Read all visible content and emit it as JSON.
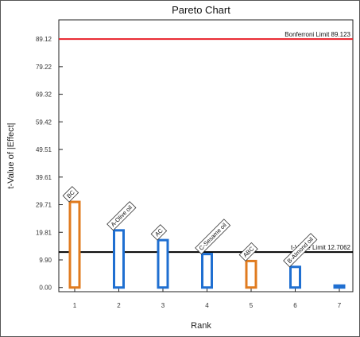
{
  "chart_data": {
    "type": "bar",
    "title": "Pareto Chart",
    "xlabel": "Rank",
    "ylabel": "t-Value of |Effect|",
    "categories": [
      "1",
      "2",
      "3",
      "4",
      "5",
      "6",
      "7"
    ],
    "values": [
      30.7,
      20.5,
      17.0,
      12.0,
      9.5,
      7.4,
      0.7
    ],
    "bar_labels": [
      "BC",
      "A-Olive oil",
      "AC",
      "C-Sesame oil",
      "ABC",
      "B-Almond oil",
      ""
    ],
    "bar_effects": [
      "negative",
      "positive",
      "positive",
      "positive",
      "negative",
      "positive",
      "positive"
    ],
    "y_ticks": [
      "0.00",
      "9.90",
      "19.81",
      "29.71",
      "39.61",
      "49.51",
      "59.42",
      "69.32",
      "79.22",
      "89.12"
    ],
    "ylim": [
      -1.5,
      96
    ],
    "reference_lines": [
      {
        "label": "Bonferroni Limit 89.123",
        "value": 89.123,
        "color": "#e8202a"
      },
      {
        "label": "t-Value Limit 12.7062",
        "value": 12.7062,
        "color": "#000000"
      }
    ],
    "colors": {
      "positive": "#1f6fd1",
      "negative": "#e07b1f"
    }
  }
}
